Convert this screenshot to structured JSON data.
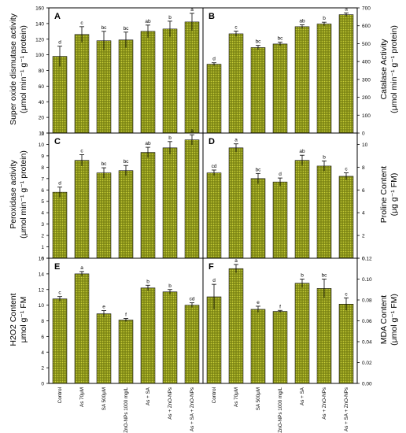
{
  "colors": {
    "bar_fill": "#7d8614",
    "bar_dot": "#c9cf3a",
    "bar_edge": "#111111",
    "axis": "#000000"
  },
  "bar_pattern": "olive dotted fill",
  "chart_data": [
    {
      "panel": "A",
      "type": "bar",
      "categories": [
        "Control",
        "As 70μM",
        "SA 500μM",
        "ZnO-NPs 1000 mg/L",
        "As + SA",
        "As + ZnO-NPs",
        "As + SA + ZnO-NPs"
      ],
      "values": [
        98,
        126,
        118,
        119,
        130,
        133,
        142
      ],
      "errors": [
        13,
        10,
        12,
        10,
        8,
        10,
        11
      ],
      "letters": [
        "d",
        "c",
        "bc",
        "bc",
        "ab",
        "b",
        "a"
      ],
      "ylim": [
        0,
        160
      ],
      "yticks": [
        0,
        20,
        40,
        60,
        80,
        100,
        120,
        140,
        160
      ],
      "y_axis_side": "left",
      "ylabel_lines": [
        "Super oxide dismutase activity",
        "(μmol min⁻¹ g⁻¹ protein)"
      ]
    },
    {
      "panel": "B",
      "type": "bar",
      "categories": [
        "Control",
        "As 70μM",
        "SA 500μM",
        "ZnO-NPs 1000 mg/L",
        "As + SA",
        "As + ZnO-NPs",
        "As + SA + ZnO-NPs"
      ],
      "values": [
        385,
        555,
        478,
        498,
        595,
        610,
        662
      ],
      "errors": [
        8,
        15,
        12,
        10,
        10,
        10,
        10
      ],
      "letters": [
        "d",
        "c",
        "bc",
        "bc",
        "ab",
        "b",
        "a"
      ],
      "ylim": [
        0,
        700
      ],
      "yticks": [
        0,
        100,
        200,
        300,
        400,
        500,
        600,
        700
      ],
      "y_axis_side": "right",
      "ylabel_lines": [
        "Catalase Activity",
        "(μmol min⁻¹ g⁻¹ protein)"
      ]
    },
    {
      "panel": "C",
      "type": "bar",
      "categories": [
        "Control",
        "As 70μM",
        "SA 500μM",
        "ZnO-NPs 1000 mg/L",
        "As + SA",
        "As + ZnO-NPs",
        "As + SA + ZnO-NPs"
      ],
      "values": [
        5.8,
        8.6,
        7.5,
        7.7,
        9.3,
        9.7,
        10.4
      ],
      "errors": [
        0.45,
        0.5,
        0.45,
        0.45,
        0.45,
        0.55,
        0.45
      ],
      "letters": [
        "d",
        "c",
        "bc",
        "bc",
        "ab",
        "b",
        "a"
      ],
      "ylim": [
        0,
        11
      ],
      "yticks": [
        0,
        1,
        2,
        3,
        4,
        5,
        6,
        7,
        8,
        9,
        10,
        11
      ],
      "y_axis_side": "left",
      "ylabel_lines": [
        "Peroxidase activity",
        "(μmol min⁻¹ g⁻¹ protein)"
      ]
    },
    {
      "panel": "D",
      "type": "bar",
      "categories": [
        "Control",
        "As 70μM",
        "SA 500μM",
        "ZnO-NPs 1000 mg/L",
        "As + SA",
        "As + ZnO-NPs",
        "As + SA + ZnO-NPs"
      ],
      "values": [
        7.5,
        9.7,
        7.0,
        6.7,
        8.6,
        8.1,
        7.2
      ],
      "errors": [
        0.25,
        0.35,
        0.45,
        0.35,
        0.45,
        0.45,
        0.3
      ],
      "letters": [
        "cd",
        "a",
        "bc",
        "d",
        "ab",
        "b",
        "c"
      ],
      "ylim": [
        0,
        11
      ],
      "yticks": [
        0,
        2,
        4,
        6,
        8,
        10
      ],
      "y_axis_side": "right",
      "ylabel_lines": [
        "Proline Content",
        "(μg g⁻¹ FM)"
      ]
    },
    {
      "panel": "E",
      "type": "bar",
      "categories": [
        "Control",
        "As 70μM",
        "SA 500μM",
        "ZnO-NPs 1000 mg/L",
        "As + SA",
        "As + ZnO-NPs",
        "As + SA + ZnO-NPs"
      ],
      "values": [
        10.8,
        14.0,
        8.9,
        8.1,
        12.2,
        11.7,
        10.0
      ],
      "errors": [
        0.3,
        0.3,
        0.4,
        0.2,
        0.35,
        0.3,
        0.3
      ],
      "letters": [
        "c",
        "a",
        "e",
        "f",
        "b",
        "b",
        "cd"
      ],
      "ylim": [
        0,
        16
      ],
      "yticks": [
        0,
        2,
        4,
        6,
        8,
        10,
        12,
        14,
        16
      ],
      "y_axis_side": "left",
      "ylabel_lines": [
        "H2O2 Content",
        "μmol g⁻¹ FM"
      ]
    },
    {
      "panel": "F",
      "type": "bar",
      "categories": [
        "Control",
        "As 70μM",
        "SA 500μM",
        "ZnO-NPs 1000 mg/L",
        "As + SA",
        "As + ZnO-NPs",
        "As + SA + ZnO-NPs"
      ],
      "values": [
        0.083,
        0.11,
        0.071,
        0.069,
        0.096,
        0.091,
        0.076
      ],
      "errors": [
        0.012,
        0.004,
        0.003,
        0.001,
        0.004,
        0.009,
        0.006
      ],
      "letters": [
        "d",
        "a",
        "e",
        "f",
        "b",
        "bc",
        "c"
      ],
      "ylim": [
        0,
        0.12
      ],
      "yticks": [
        "0.00",
        "0.02",
        "0.04",
        "0.06",
        "0.08",
        "0.10",
        "0.12"
      ],
      "y_axis_side": "right",
      "ylabel_lines": [
        "MDA Content",
        "(μmol g⁻¹ FM)"
      ]
    }
  ]
}
